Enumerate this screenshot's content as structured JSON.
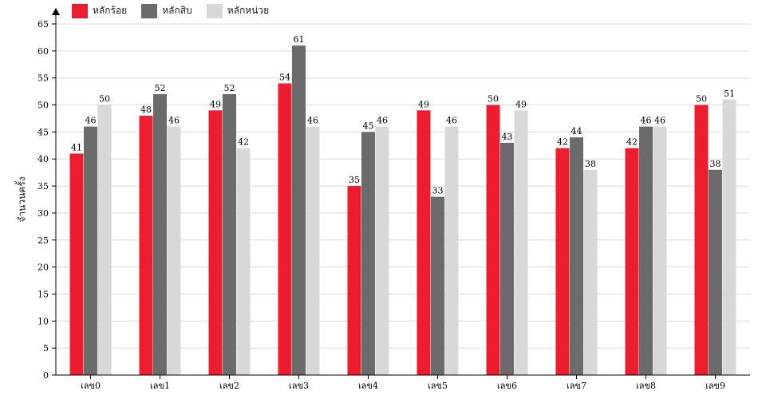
{
  "chart_data": {
    "type": "bar",
    "categories": [
      "เลข0",
      "เลข1",
      "เลข2",
      "เลข3",
      "เลข4",
      "เลข5",
      "เลข6",
      "เลข7",
      "เลข8",
      "เลข9"
    ],
    "series": [
      {
        "name": "หลักร้อย",
        "color": "#ed1c2e",
        "values": [
          41,
          48,
          49,
          54,
          35,
          49,
          50,
          42,
          42,
          50
        ]
      },
      {
        "name": "หลักสิบ",
        "color": "#6b6b6b",
        "values": [
          46,
          52,
          52,
          61,
          45,
          33,
          43,
          44,
          46,
          38
        ]
      },
      {
        "name": "หลักหน่วย",
        "color": "#d8d8d8",
        "values": [
          50,
          46,
          42,
          46,
          46,
          46,
          49,
          38,
          46,
          51
        ]
      }
    ],
    "ylabel": "จำนวนครั้ง",
    "ylim": [
      0,
      65
    ],
    "yticks": [
      0,
      5,
      10,
      15,
      20,
      25,
      30,
      35,
      40,
      45,
      50,
      55,
      60,
      65
    ],
    "grid": true,
    "legend": "top-left"
  }
}
